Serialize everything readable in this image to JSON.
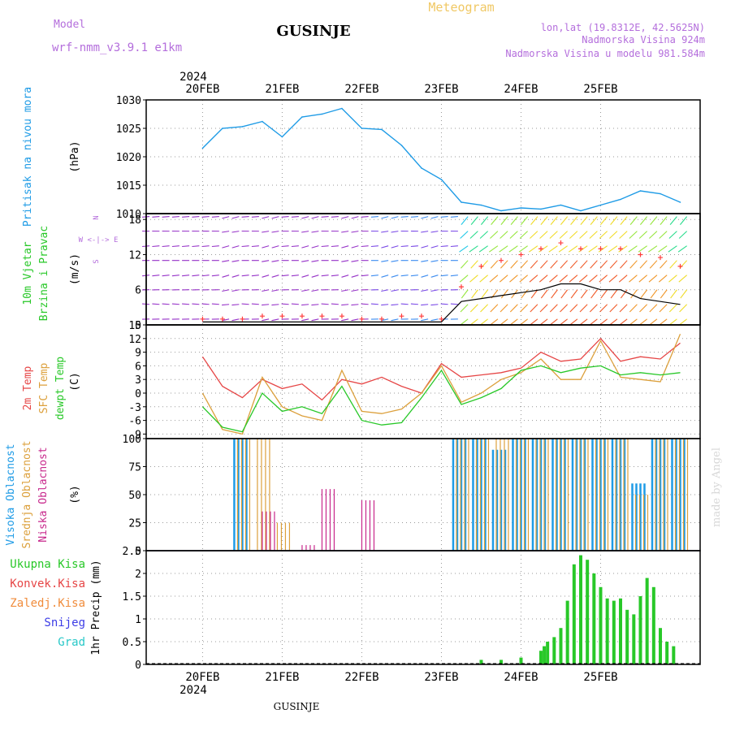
{
  "header": {
    "model_label": "Model",
    "model_value": "wrf-nmm_v3.9.1  e1km",
    "station": "GUSINJE",
    "meteogram": "Meteogram",
    "lonlat": "lon,lat (19.8312E, 42.5625N)",
    "elevation": "Nadmorska Visina 924m",
    "model_elevation": "Nadmorska Visina u modelu 981.584m",
    "year": "2024",
    "footer_station": "GUSINJE",
    "watermark": "made by Angel"
  },
  "colors": {
    "pressure": "#1e9be6",
    "t2m": "#e64646",
    "sfc": "#dca03c",
    "dewpt": "#28c828",
    "high_cloud": "#1e9be6",
    "mid_cloud": "#dca03c",
    "low_cloud": "#c8288c",
    "precip": "#28c828",
    "wind_line": "#000000",
    "gust": "#ff3c3c"
  },
  "chart_data": [
    {
      "type": "line",
      "panel": "pressure",
      "ylabel_lines": [
        "Pritisak na nivou mora"
      ],
      "unit": "(hPa)",
      "ylim": [
        1010,
        1030
      ],
      "yticks": [
        1010,
        1015,
        1020,
        1025,
        1030
      ],
      "x_day_labels": [
        "20FEB",
        "21FEB",
        "22FEB",
        "23FEB",
        "24FEB",
        "25FEB"
      ],
      "x_hours": [
        0,
        6,
        12,
        18,
        24,
        30,
        36,
        42,
        48,
        54,
        60,
        66,
        72,
        78,
        84,
        90,
        96,
        102,
        108,
        114,
        120,
        126,
        132,
        138,
        144
      ],
      "series": [
        {
          "values": [
            1021.5,
            1025.0,
            1025.3,
            1026.2,
            1023.5,
            1027.0,
            1027.5,
            1028.5,
            1025.0,
            1024.8,
            1022.0,
            1018.0,
            1016.0,
            1012.0,
            1011.5,
            1010.5,
            1011.0,
            1010.8,
            1011.5,
            1010.5,
            1011.5,
            1012.5,
            1014.0,
            1013.5,
            1012.0
          ]
        }
      ]
    },
    {
      "type": "line",
      "panel": "wind",
      "ylabel_lines": [
        "10m Vjetar",
        "Brzina i Pravac"
      ],
      "unit": "(m/s)",
      "compass": [
        "N",
        "W <-|-> E",
        "S"
      ],
      "ylim": [
        0,
        19
      ],
      "yticks": [
        0,
        6,
        12,
        18
      ],
      "x_hours": [
        0,
        6,
        12,
        18,
        24,
        30,
        36,
        42,
        48,
        54,
        60,
        66,
        72,
        78,
        84,
        90,
        96,
        102,
        108,
        114,
        120,
        126,
        132,
        138,
        144
      ],
      "series": [
        {
          "values": [
            0.5,
            0.5,
            0.5,
            0.5,
            0.5,
            0.5,
            0.5,
            0.5,
            0.5,
            0.5,
            0.5,
            0.5,
            0.5,
            4.0,
            4.5,
            5.0,
            5.5,
            6.0,
            7.0,
            7.0,
            6.0,
            6.0,
            4.5,
            4.0,
            3.5
          ]
        },
        {
          "values": [
            1.0,
            1.0,
            1.0,
            1.5,
            1.5,
            1.5,
            1.5,
            1.5,
            1.0,
            1.0,
            1.5,
            1.5,
            1.0,
            6.5,
            10.0,
            11.0,
            12.0,
            13.0,
            14.0,
            13.0,
            13.0,
            13.0,
            12.0,
            11.5,
            10.0
          ]
        }
      ]
    },
    {
      "type": "line",
      "panel": "temperature",
      "ylabel_lines": [
        "2m Temp",
        "SFC Temp",
        "dewpt Temp"
      ],
      "unit": "(C)",
      "ylim": [
        -10,
        15
      ],
      "yticks": [
        -9,
        -6,
        -3,
        0,
        3,
        6,
        9,
        12,
        15
      ],
      "x_hours": [
        0,
        6,
        12,
        18,
        24,
        30,
        36,
        42,
        48,
        54,
        60,
        66,
        72,
        78,
        84,
        90,
        96,
        102,
        108,
        114,
        120,
        126,
        132,
        138,
        144
      ],
      "series": [
        {
          "name": "2m Temp",
          "values": [
            8.0,
            1.5,
            -1.0,
            3.0,
            1.0,
            2.0,
            -1.5,
            3.0,
            2.0,
            3.5,
            1.5,
            0.0,
            6.5,
            3.5,
            4.0,
            4.5,
            5.5,
            9.0,
            7.0,
            7.5,
            12.0,
            7.0,
            8.0,
            7.5,
            11.0
          ]
        },
        {
          "name": "SFC Temp",
          "values": [
            0.0,
            -8.0,
            -9.0,
            3.5,
            -3.0,
            -5.0,
            -6.0,
            5.0,
            -4.0,
            -4.5,
            -3.5,
            0.0,
            6.0,
            -2.0,
            0.0,
            3.0,
            4.5,
            7.5,
            3.0,
            3.0,
            11.5,
            3.5,
            3.0,
            2.5,
            13.0
          ]
        },
        {
          "name": "dewpt Temp",
          "values": [
            -3.0,
            -7.5,
            -8.5,
            0.0,
            -4.0,
            -3.0,
            -4.5,
            1.5,
            -6.0,
            -7.0,
            -6.5,
            -1.0,
            5.0,
            -2.5,
            -1.0,
            1.0,
            5.0,
            6.0,
            4.5,
            5.5,
            6.0,
            4.0,
            4.5,
            4.0,
            4.5
          ]
        }
      ]
    },
    {
      "type": "bar",
      "panel": "cloud",
      "ylabel_lines": [
        "Visoka Oblacnost",
        "Srednja Oblacnost",
        "Niska Oblacnost"
      ],
      "unit": "(%)",
      "ylim": [
        0,
        100
      ],
      "yticks": [
        0,
        25,
        50,
        75,
        100
      ],
      "x_hours": [
        0,
        6,
        12,
        18,
        24,
        30,
        36,
        42,
        48,
        54,
        60,
        66,
        72,
        78,
        84,
        90,
        96,
        102,
        108,
        114,
        120,
        126,
        132,
        138,
        144
      ],
      "series": [
        {
          "name": "Visoka Oblacnost",
          "values": [
            0,
            0,
            100,
            0,
            0,
            0,
            0,
            0,
            0,
            0,
            0,
            0,
            0,
            100,
            100,
            90,
            100,
            100,
            100,
            100,
            100,
            100,
            60,
            100,
            100
          ]
        },
        {
          "name": "Srednja Oblacnost",
          "values": [
            0,
            0,
            100,
            100,
            25,
            0,
            0,
            0,
            0,
            0,
            0,
            0,
            0,
            100,
            100,
            100,
            100,
            100,
            100,
            100,
            100,
            100,
            50,
            100,
            100
          ]
        },
        {
          "name": "Niska Oblacnost",
          "values": [
            0,
            0,
            0,
            35,
            0,
            5,
            55,
            0,
            45,
            0,
            0,
            0,
            0,
            0,
            0,
            0,
            0,
            0,
            0,
            0,
            0,
            0,
            0,
            0,
            0
          ]
        }
      ]
    },
    {
      "type": "bar",
      "panel": "precip",
      "legend": [
        "Ukupna Kisa",
        "Konvek.Kisa",
        "Zaledj.Kisa",
        "Snijeg",
        "Grad"
      ],
      "ylabel": "1hr Precip (mm)",
      "ylim": [
        0,
        2.5
      ],
      "yticks": [
        0,
        0.5,
        1,
        1.5,
        2,
        2.5
      ],
      "x_hours": [
        84,
        90,
        96,
        102,
        103,
        104,
        106,
        108,
        110,
        112,
        114,
        116,
        118,
        120,
        122,
        124,
        126,
        128,
        130,
        132,
        134,
        136,
        138,
        140,
        142
      ],
      "series": [
        {
          "name": "Ukupna Kisa",
          "values": [
            0.1,
            0.1,
            0.15,
            0.3,
            0.4,
            0.5,
            0.6,
            0.8,
            1.4,
            2.2,
            2.4,
            2.3,
            2.0,
            1.7,
            1.45,
            1.4,
            1.45,
            1.2,
            1.1,
            1.5,
            1.9,
            1.7,
            0.8,
            0.5,
            0.4
          ]
        }
      ]
    }
  ]
}
